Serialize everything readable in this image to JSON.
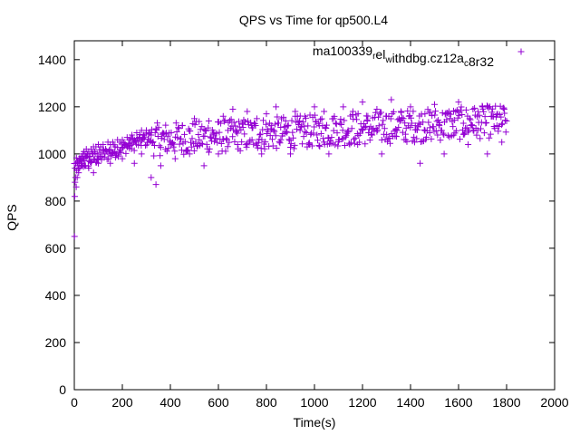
{
  "chart_data": {
    "type": "scatter",
    "title": "QPS vs Time for qp500.L4",
    "xlabel": "Time(s)",
    "ylabel": "QPS",
    "xlim": [
      0,
      2000
    ],
    "ylim": [
      0,
      1480
    ],
    "xticks": [
      "0",
      "200",
      "400",
      "600",
      "800",
      "1000",
      "1200",
      "1400",
      "1600",
      "1800",
      "2000"
    ],
    "yticks": [
      "0",
      "200",
      "400",
      "600",
      "800",
      "1000",
      "1200",
      "1400"
    ],
    "grid": false,
    "legend": {
      "position": "top-right",
      "parts": [
        {
          "text": "ma100339",
          "sub": false
        },
        {
          "text": "r",
          "sub": true
        },
        {
          "text": "el",
          "sub": false
        },
        {
          "text": "w",
          "sub": true
        },
        {
          "text": "ithdbg.cz12a",
          "sub": false
        },
        {
          "text": "c",
          "sub": true
        },
        {
          "text": "8r32",
          "sub": false
        }
      ]
    },
    "series": [
      {
        "marker": "+",
        "color": "#9400d3",
        "points": [
          [
            1,
            650
          ],
          [
            2,
            820
          ],
          [
            3,
            880
          ],
          [
            5,
            900
          ],
          [
            8,
            860
          ],
          [
            10,
            930
          ],
          [
            12,
            900
          ],
          [
            15,
            950
          ],
          [
            18,
            920
          ],
          [
            20,
            960
          ],
          [
            22,
            940
          ],
          [
            25,
            980
          ],
          [
            28,
            950
          ],
          [
            30,
            990
          ],
          [
            33,
            960
          ],
          [
            35,
            1000
          ],
          [
            38,
            980
          ],
          [
            40,
            1010
          ],
          [
            42,
            970
          ],
          [
            45,
            1000
          ],
          [
            48,
            990
          ],
          [
            50,
            1020
          ],
          [
            55,
            1000
          ],
          [
            60,
            1010
          ],
          [
            65,
            990
          ],
          [
            70,
            1020
          ],
          [
            75,
            1000
          ],
          [
            80,
            1030
          ],
          [
            85,
            1010
          ],
          [
            90,
            1030
          ],
          [
            95,
            1000
          ],
          [
            100,
            1040
          ],
          [
            110,
            1030
          ],
          [
            120,
            1040
          ],
          [
            130,
            1020
          ],
          [
            140,
            1050
          ],
          [
            150,
            1040
          ],
          [
            160,
            1050
          ],
          [
            170,
            1030
          ],
          [
            180,
            1060
          ],
          [
            190,
            1050
          ],
          [
            200,
            1060
          ],
          [
            210,
            1040
          ],
          [
            220,
            1070
          ],
          [
            230,
            1060
          ],
          [
            240,
            1080
          ],
          [
            250,
            1060
          ],
          [
            260,
            1090
          ],
          [
            270,
            1070
          ],
          [
            280,
            1100
          ],
          [
            290,
            1080
          ],
          [
            300,
            1100
          ],
          [
            310,
            1090
          ],
          [
            320,
            1080
          ],
          [
            60,
            940
          ],
          [
            80,
            920
          ],
          [
            100,
            960
          ],
          [
            150,
            960
          ],
          [
            200,
            980
          ],
          [
            250,
            960
          ],
          [
            280,
            1000
          ],
          [
            320,
            900
          ],
          [
            340,
            870
          ],
          [
            360,
            950
          ],
          [
            380,
            1020
          ],
          [
            400,
            1050
          ],
          [
            420,
            980
          ],
          [
            450,
            1120
          ],
          [
            480,
            1000
          ],
          [
            500,
            1150
          ],
          [
            520,
            1060
          ],
          [
            540,
            950
          ],
          [
            560,
            1140
          ],
          [
            580,
            1080
          ],
          [
            600,
            1000
          ],
          [
            620,
            1160
          ],
          [
            640,
            1100
          ],
          [
            660,
            1190
          ],
          [
            680,
            1040
          ],
          [
            700,
            1130
          ],
          [
            720,
            1180
          ],
          [
            740,
            1060
          ],
          [
            760,
            1150
          ],
          [
            780,
            1000
          ],
          [
            800,
            1170
          ],
          [
            820,
            1120
          ],
          [
            840,
            1200
          ],
          [
            860,
            1060
          ],
          [
            880,
            1140
          ],
          [
            900,
            1000
          ],
          [
            920,
            1180
          ],
          [
            940,
            1100
          ],
          [
            960,
            1160
          ],
          [
            980,
            1040
          ],
          [
            1000,
            1200
          ],
          [
            1020,
            1120
          ],
          [
            1040,
            1180
          ],
          [
            1060,
            1000
          ],
          [
            1080,
            1150
          ],
          [
            1100,
            1060
          ],
          [
            1120,
            1200
          ],
          [
            1140,
            1100
          ],
          [
            1160,
            1180
          ],
          [
            1180,
            1040
          ],
          [
            1200,
            1220
          ],
          [
            1220,
            1140
          ],
          [
            1240,
            1080
          ],
          [
            1260,
            1190
          ],
          [
            1280,
            1000
          ],
          [
            1300,
            1160
          ],
          [
            1320,
            1230
          ],
          [
            1340,
            1100
          ],
          [
            1360,
            1180
          ],
          [
            1380,
            1060
          ],
          [
            1400,
            1200
          ],
          [
            1420,
            1120
          ],
          [
            1440,
            960
          ],
          [
            1460,
            1170
          ],
          [
            1480,
            1090
          ],
          [
            1500,
            1210
          ],
          [
            1520,
            1120
          ],
          [
            1540,
            1000
          ],
          [
            1560,
            1180
          ],
          [
            1580,
            1080
          ],
          [
            1600,
            1220
          ],
          [
            1620,
            1130
          ],
          [
            1640,
            1040
          ],
          [
            1660,
            1190
          ],
          [
            1680,
            1100
          ],
          [
            1700,
            1200
          ],
          [
            1720,
            1000
          ],
          [
            1740,
            1160
          ],
          [
            1760,
            1120
          ],
          [
            1780,
            1050
          ],
          [
            1790,
            1190
          ],
          [
            1800,
            1140
          ]
        ]
      }
    ],
    "dense_band": {
      "x_from": 0,
      "x_to": 1800,
      "samples": 620,
      "center_start": 1000,
      "center_end": 1140,
      "spread": 70
    }
  }
}
